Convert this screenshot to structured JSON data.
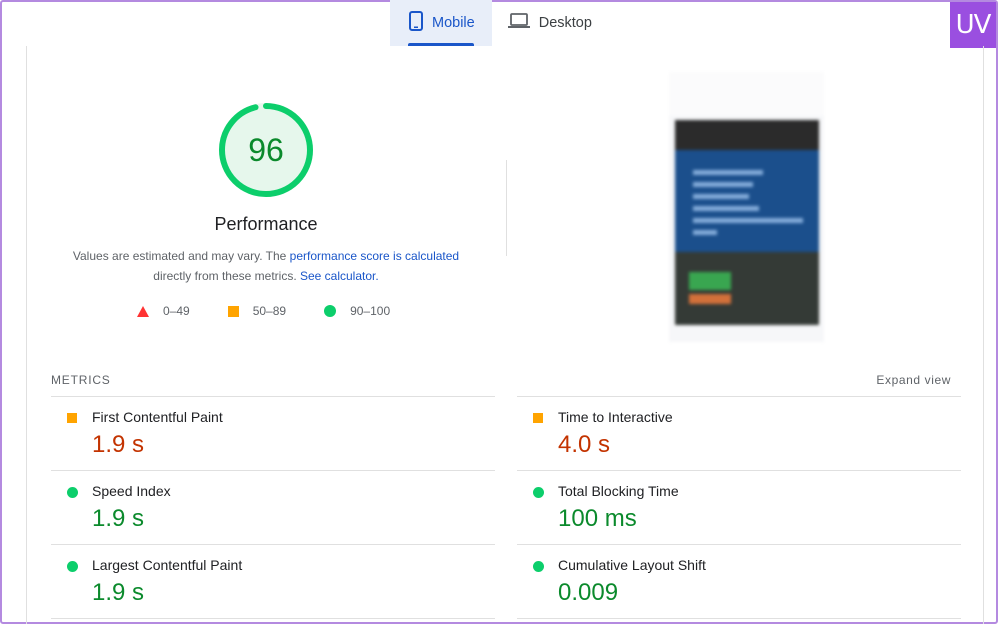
{
  "tabs": [
    {
      "label": "Mobile",
      "icon": "smartphone-icon",
      "active": true
    },
    {
      "label": "Desktop",
      "icon": "laptop-icon",
      "active": false
    }
  ],
  "logo": {
    "text": "UV",
    "color": "#9a4fe0"
  },
  "score": {
    "value": "96",
    "progress": 0.96,
    "title": "Performance",
    "desc_text1": "Values are estimated and may vary. The ",
    "desc_link1": "performance score is calculated",
    "desc_text2": "directly from these metrics. ",
    "desc_link2": "See calculator."
  },
  "legend": [
    {
      "label": "0–49",
      "shape": "triangle",
      "color": "#ff3333"
    },
    {
      "label": "50–89",
      "shape": "square",
      "color": "#ffa400"
    },
    {
      "label": "90–100",
      "shape": "circle",
      "color": "#0cce6b"
    }
  ],
  "metrics": {
    "label": "METRICS",
    "expand_label": "Expand view",
    "items": [
      {
        "name": "First Contentful Paint",
        "value": "1.9 s",
        "rating": "average"
      },
      {
        "name": "Time to Interactive",
        "value": "4.0 s",
        "rating": "average"
      },
      {
        "name": "Speed Index",
        "value": "1.9 s",
        "rating": "good"
      },
      {
        "name": "Total Blocking Time",
        "value": "100 ms",
        "rating": "good"
      },
      {
        "name": "Largest Contentful Paint",
        "value": "1.9 s",
        "rating": "good"
      },
      {
        "name": "Cumulative Layout Shift",
        "value": "0.009",
        "rating": "good"
      }
    ]
  },
  "colors": {
    "accent": "#1a56c9",
    "good": "#0cce6b",
    "average": "#ffa400",
    "poor": "#ff3333"
  }
}
